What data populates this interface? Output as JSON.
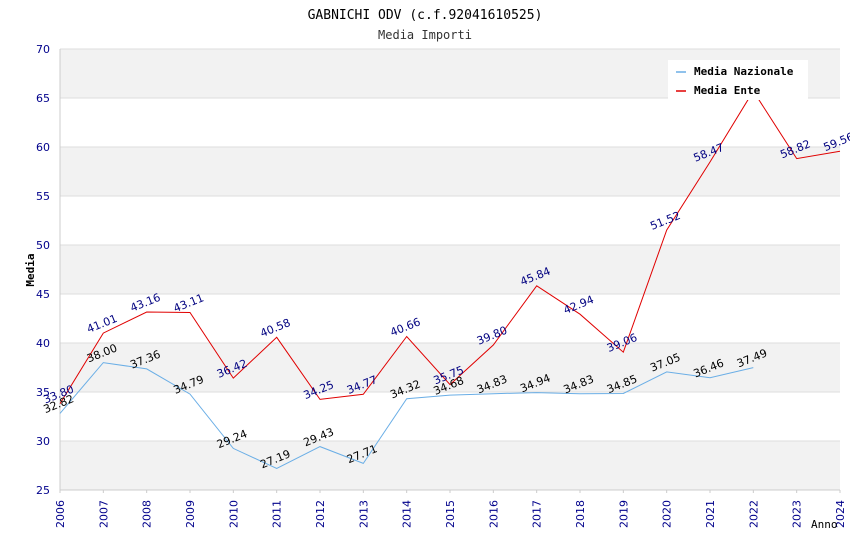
{
  "chart_data": {
    "type": "line",
    "title": "GABNICHI ODV (c.f.92041610525)",
    "subtitle": "Media Importi",
    "xlabel": "Anno",
    "ylabel": "Media",
    "ylim": [
      25,
      70
    ],
    "yticks": [
      "25",
      "30",
      "35",
      "40",
      "45",
      "50",
      "55",
      "60",
      "65",
      "70"
    ],
    "x": [
      "2006",
      "2007",
      "2008",
      "2009",
      "2010",
      "2011",
      "2012",
      "2013",
      "2014",
      "2015",
      "2016",
      "2017",
      "2018",
      "2019",
      "2020",
      "2021",
      "2022",
      "2023",
      "2024"
    ],
    "grid": true,
    "legend_position": "top-right",
    "series": [
      {
        "name": "Media Nazionale",
        "color": "#6aaee6",
        "label_color": "#000000",
        "values": [
          32.82,
          38.0,
          37.36,
          34.79,
          29.24,
          27.19,
          29.43,
          27.71,
          34.32,
          34.68,
          34.83,
          34.94,
          34.83,
          34.85,
          37.05,
          36.46,
          37.49,
          null,
          null
        ],
        "labels": [
          "32.82",
          "38.00",
          "37.36",
          "34.79",
          "29.24",
          "27.19",
          "29.43",
          "27.71",
          "34.32",
          "34.68",
          "34.83",
          "34.94",
          "34.83",
          "34.85",
          "37.05",
          "36.46",
          "37.49",
          null,
          null
        ]
      },
      {
        "name": "Media Ente",
        "color": "#e00000",
        "label_color": "#000080",
        "values": [
          33.8,
          41.01,
          43.16,
          43.11,
          36.42,
          40.58,
          34.25,
          34.77,
          40.66,
          35.75,
          39.8,
          45.84,
          42.94,
          39.06,
          51.52,
          58.47,
          65.7,
          58.82,
          59.56
        ],
        "labels": [
          "33.80",
          "41.01",
          "43.16",
          "43.11",
          "36.42",
          "40.58",
          "34.25",
          "34.77",
          "40.66",
          "35.75",
          "39.80",
          "45.84",
          "42.94",
          "39.06",
          "51.52",
          "58.47",
          null,
          "58.82",
          "59.56"
        ]
      }
    ],
    "colors": {
      "axis_text": "#00008b",
      "band": "#f2f2f2",
      "gridline": "#dddddd"
    }
  }
}
